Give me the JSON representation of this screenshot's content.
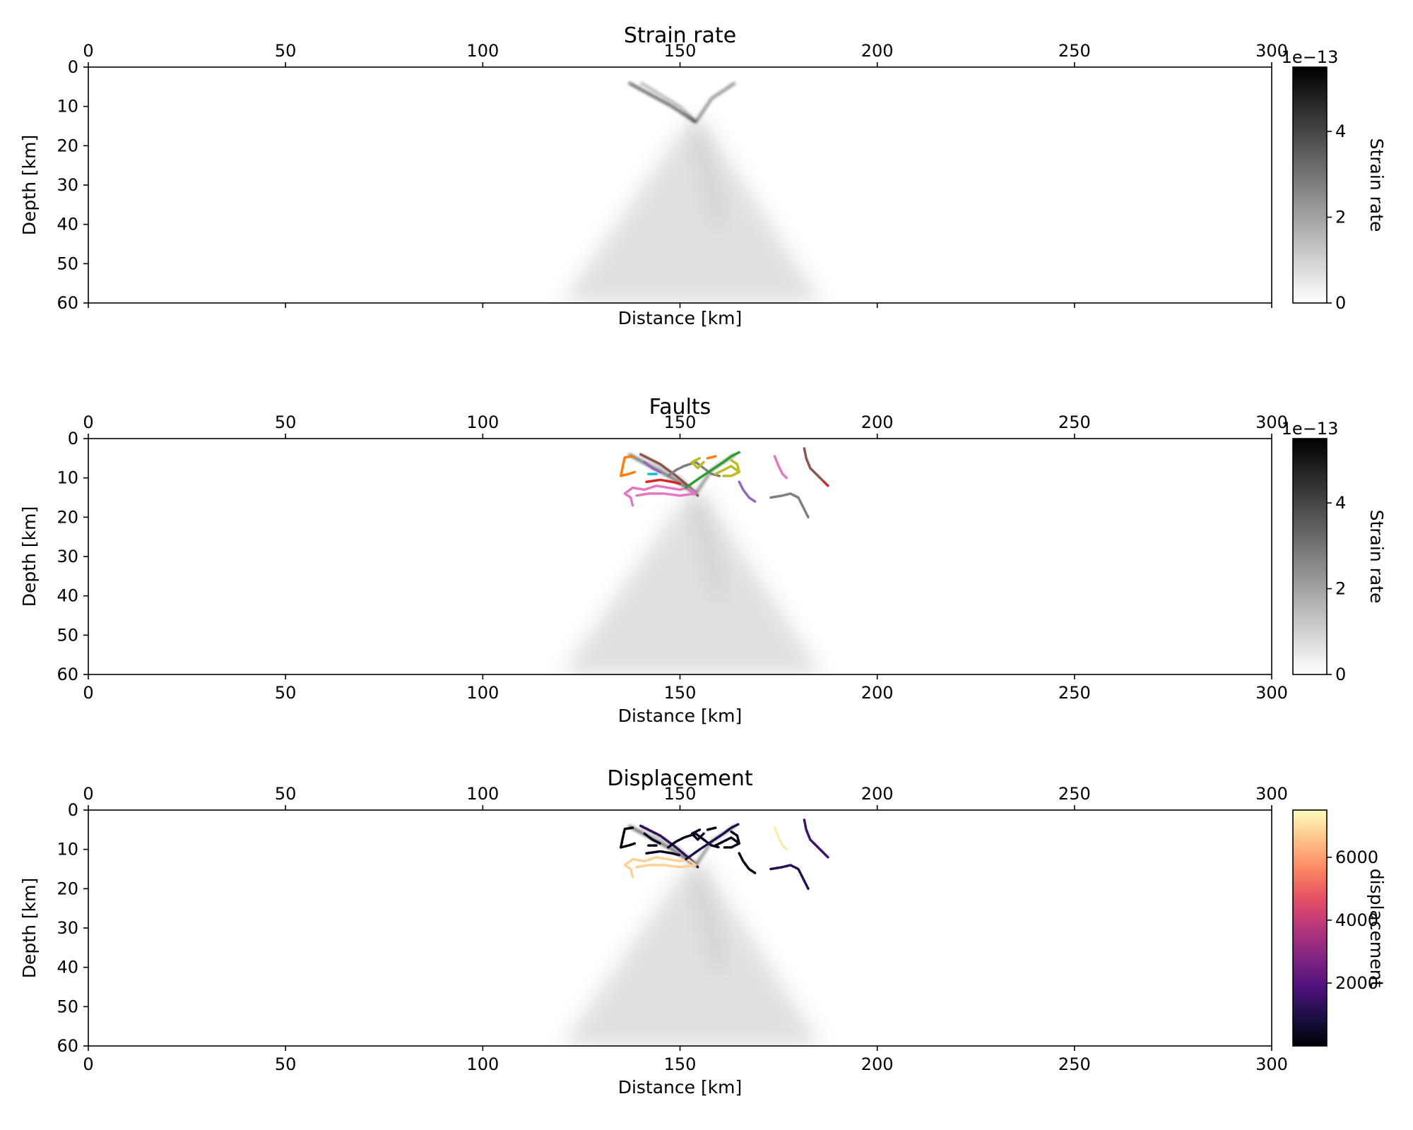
{
  "figure": {
    "colors": {
      "strain_min": "#ffffff",
      "strain_max": "#000000",
      "magma": [
        "#000004",
        "#1c1044",
        "#4f127b",
        "#812581",
        "#b5367a",
        "#e55064",
        "#fb8761",
        "#fec287",
        "#fcfdbf"
      ],
      "fault_palette": [
        "#1f77b4",
        "#ff7f0e",
        "#2ca02c",
        "#d62728",
        "#9467bd",
        "#8c564b",
        "#e377c2",
        "#7f7f7f",
        "#bcbd22",
        "#17becf"
      ]
    }
  },
  "chart_data": [
    {
      "type": "heatmap",
      "title": "Strain rate",
      "xlabel": "Distance [km]",
      "ylabel": "Depth [km]",
      "xlim": [
        0,
        300
      ],
      "ylim": [
        60,
        0
      ],
      "xticks": [
        "0",
        "50",
        "100",
        "150",
        "200",
        "250",
        "300"
      ],
      "yticks": [
        "0",
        "10",
        "20",
        "30",
        "40",
        "50",
        "60"
      ],
      "top_axis_ticks": [
        "0",
        "50",
        "100",
        "150",
        "200",
        "250",
        "300"
      ],
      "colorbar": {
        "label": "Strain rate",
        "offset_text": "1e−13",
        "range": [
          0,
          5.5
        ],
        "ticks": [
          "0",
          "2",
          "4"
        ],
        "cmap": "Greys"
      },
      "features": {
        "shear_bands": [
          {
            "points": [
              [
                137,
                4
              ],
              [
                148,
                10
              ],
              [
                154,
                14
              ]
            ],
            "intensity": 0.85
          },
          {
            "points": [
              [
                154,
                14
              ],
              [
                158,
                8
              ],
              [
                164,
                4
              ]
            ],
            "intensity": 0.6
          },
          {
            "points": [
              [
                140,
                4
              ],
              [
                150,
                10
              ],
              [
                154,
                14
              ]
            ],
            "intensity": 0.4
          }
        ],
        "deep_fan": {
          "apex": [
            154,
            14
          ],
          "base": [
            120,
            186
          ],
          "intensity": 0.12
        }
      }
    },
    {
      "type": "heatmap",
      "title": "Faults",
      "xlabel": "Distance [km]",
      "ylabel": "Depth [km]",
      "xlim": [
        0,
        300
      ],
      "ylim": [
        60,
        0
      ],
      "xticks": [
        "0",
        "50",
        "100",
        "150",
        "200",
        "250",
        "300"
      ],
      "yticks": [
        "0",
        "10",
        "20",
        "30",
        "40",
        "50",
        "60"
      ],
      "top_axis_ticks": [
        "0",
        "50",
        "100",
        "150",
        "200",
        "250",
        "300"
      ],
      "colorbar": {
        "label": "Strain rate",
        "offset_text": "1e−13",
        "range": [
          0,
          5.5
        ],
        "ticks": [
          "0",
          "2",
          "4"
        ],
        "cmap": "Greys"
      },
      "faults": [
        {
          "color": "#ff7f0e",
          "displacement": 200,
          "points": [
            [
              138,
              4.5
            ],
            [
              136,
              4.8
            ],
            [
              135.5,
              7
            ],
            [
              135,
              9.5
            ],
            [
              137,
              9
            ],
            [
              138.5,
              8.5
            ]
          ]
        },
        {
          "color": "#9467bd",
          "displacement": 400,
          "points": [
            [
              141,
              6
            ],
            [
              143,
              7.5
            ],
            [
              145,
              8.5
            ]
          ]
        },
        {
          "color": "#17becf",
          "displacement": 300,
          "points": [
            [
              142,
              9
            ],
            [
              144,
              9
            ]
          ]
        },
        {
          "color": "#8c564b",
          "displacement": 1300,
          "points": [
            [
              140,
              4
            ],
            [
              145,
              6.5
            ],
            [
              149,
              9.5
            ],
            [
              152,
              12
            ],
            [
              154.5,
              14.5
            ]
          ]
        },
        {
          "color": "#d62728",
          "displacement": 400,
          "points": [
            [
              141.5,
              11
            ],
            [
              145,
              10.5
            ],
            [
              148,
              11
            ],
            [
              150,
              11.5
            ]
          ]
        },
        {
          "color": "#e377c2",
          "displacement": 6800,
          "points": [
            [
              138,
              17
            ],
            [
              137.5,
              15
            ],
            [
              136,
              14
            ],
            [
              138,
              12.5
            ],
            [
              141,
              13
            ],
            [
              144,
              12
            ],
            [
              147,
              12.5
            ],
            [
              150,
              13
            ],
            [
              152,
              12.5
            ],
            [
              154,
              14
            ],
            [
              150,
              14.5
            ],
            [
              146,
              14
            ],
            [
              142,
              14
            ],
            [
              139,
              14.5
            ]
          ]
        },
        {
          "color": "#7f7f7f",
          "displacement": 300,
          "points": [
            [
              147,
              9.5
            ],
            [
              149,
              8
            ],
            [
              151,
              7
            ],
            [
              154,
              6
            ],
            [
              156,
              7.5
            ],
            [
              158,
              9
            ],
            [
              160,
              9.5
            ]
          ]
        },
        {
          "color": "#bcbd22",
          "displacement": 500,
          "points": [
            [
              155,
              5
            ],
            [
              153,
              6
            ],
            [
              154.5,
              7.5
            ],
            [
              156,
              6
            ]
          ]
        },
        {
          "color": "#2ca02c",
          "displacement": 1000,
          "points": [
            [
              151.5,
              12.5
            ],
            [
              155,
              10
            ],
            [
              158,
              8
            ],
            [
              161,
              6
            ],
            [
              163,
              4.5
            ],
            [
              165,
              3.5
            ]
          ]
        },
        {
          "color": "#ff7f0e",
          "displacement": 250,
          "points": [
            [
              157,
              5
            ],
            [
              159,
              4.5
            ]
          ]
        },
        {
          "color": "#bcbd22",
          "displacement": 300,
          "points": [
            [
              159,
              9
            ],
            [
              161,
              8
            ],
            [
              163,
              7
            ],
            [
              165,
              8.5
            ],
            [
              163,
              9.5
            ],
            [
              161,
              9.5
            ]
          ]
        },
        {
          "color": "#bcbd22",
          "displacement": 300,
          "points": [
            [
              163,
              5.5
            ],
            [
              164.5,
              6.5
            ],
            [
              165,
              8.5
            ]
          ]
        },
        {
          "color": "#9467bd",
          "displacement": 350,
          "points": [
            [
              165,
              11
            ],
            [
              166,
              13
            ],
            [
              167.5,
              15
            ],
            [
              169,
              16
            ]
          ]
        },
        {
          "color": "#e377c2",
          "displacement": 7200,
          "points": [
            [
              174,
              4.5
            ],
            [
              175,
              7
            ],
            [
              176,
              9
            ],
            [
              177,
              10
            ]
          ]
        },
        {
          "color": "#7f7f7f",
          "displacement": 1100,
          "points": [
            [
              173,
              15
            ],
            [
              176,
              14.5
            ],
            [
              178,
              14
            ],
            [
              180,
              15
            ],
            [
              181,
              17
            ],
            [
              182,
              19
            ],
            [
              182.5,
              20
            ]
          ]
        },
        {
          "color": "#8c564b",
          "displacement": 1600,
          "points": [
            [
              181.5,
              2.5
            ],
            [
              182,
              5
            ],
            [
              183,
              7.5
            ],
            [
              185,
              9.5
            ],
            [
              186.5,
              11
            ]
          ]
        },
        {
          "color": "#d62728",
          "displacement": 1600,
          "points": [
            [
              186.5,
              11
            ],
            [
              187.5,
              12
            ]
          ]
        }
      ]
    },
    {
      "type": "heatmap",
      "title": "Displacement",
      "xlabel": "Distance [km]",
      "ylabel": "Depth [km]",
      "xlim": [
        0,
        300
      ],
      "ylim": [
        60,
        0
      ],
      "xticks": [
        "0",
        "50",
        "100",
        "150",
        "200",
        "250",
        "300"
      ],
      "yticks": [
        "0",
        "10",
        "20",
        "30",
        "40",
        "50",
        "60"
      ],
      "top_axis_ticks": [
        "0",
        "50",
        "100",
        "150",
        "200",
        "250",
        "300"
      ],
      "colorbar": {
        "label": "displacement",
        "range": [
          0,
          7500
        ],
        "ticks": [
          "2000",
          "4000",
          "6000"
        ],
        "cmap": "magma"
      }
    }
  ]
}
